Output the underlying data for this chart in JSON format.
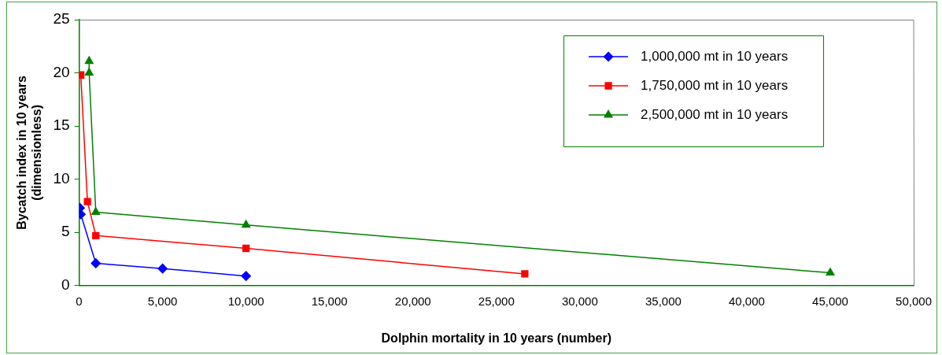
{
  "chart_data": {
    "type": "line",
    "xlabel": "Dolphin mortality in 10 years (number)",
    "ylabel": "Bycatch index in 10 years\n(dimensionless)",
    "xlim": [
      0,
      50000
    ],
    "xticks": [
      {
        "value": 0,
        "label": "0"
      },
      {
        "value": 5000,
        "label": "5,000"
      },
      {
        "value": 10000,
        "label": "10,000"
      },
      {
        "value": 15000,
        "label": "15,000"
      },
      {
        "value": 20000,
        "label": "20,000"
      },
      {
        "value": 25000,
        "label": "25,000"
      },
      {
        "value": 30000,
        "label": "30,000"
      },
      {
        "value": 35000,
        "label": "35,000"
      },
      {
        "value": 40000,
        "label": "40,000"
      },
      {
        "value": 45000,
        "label": "45,000"
      },
      {
        "value": 50000,
        "label": "50,000"
      }
    ],
    "ylim": [
      0,
      25
    ],
    "yticks": [
      0,
      5,
      10,
      15,
      20,
      25
    ],
    "grid": false,
    "legend": "top right",
    "line_style": "solid",
    "series": [
      {
        "name": "1,000,000 mt in 10 years",
        "color": "#0000ff",
        "marker": "diamond",
        "x": [
          50,
          100,
          1000,
          5000,
          10000
        ],
        "values": [
          7.3,
          6.7,
          2.1,
          1.6,
          0.9
        ]
      },
      {
        "name": "1,750,000 mt in 10 years",
        "color": "#ff0000",
        "marker": "square",
        "x": [
          100,
          500,
          1000,
          10000,
          26700
        ],
        "values": [
          19.8,
          7.9,
          4.7,
          3.5,
          1.1
        ]
      },
      {
        "name": "2,500,000 mt in 10 years",
        "color": "#008000",
        "marker": "triangle",
        "x": [
          600,
          600,
          1000,
          10000,
          45000
        ],
        "values": [
          21.1,
          20.0,
          6.9,
          5.7,
          1.2
        ]
      }
    ]
  }
}
